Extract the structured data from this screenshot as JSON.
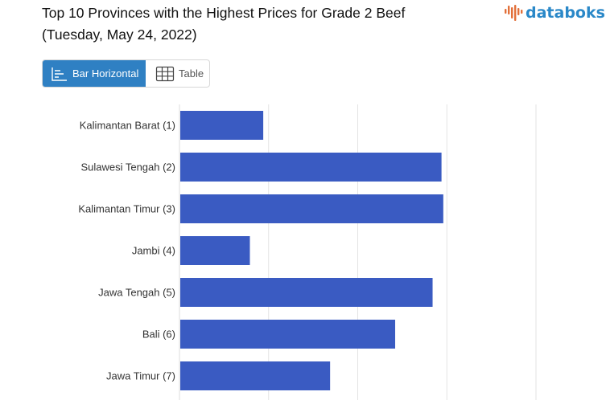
{
  "header": {
    "title_line1": "Top 10 Provinces with the Highest Prices for Grade 2 Beef",
    "title_line2": "(Tuesday, May 24, 2022)",
    "logo_text": "databoks"
  },
  "view_toggle": {
    "bar_label": "Bar Horizontal",
    "table_label": "Table",
    "active": "bar"
  },
  "colors": {
    "bar": "#3a5bc2",
    "active_tab": "#2f80c3",
    "grid": "#e3e3e3",
    "logo": "#2a88c8",
    "logo_mark": "#e2703a"
  },
  "chart_data": {
    "type": "bar",
    "orientation": "horizontal",
    "title": "",
    "xlabel": "",
    "ylabel": "",
    "categories": [
      "Kalimantan Barat (1)",
      "Sulawesi Tengah (2)",
      "Kalimantan Timur (3)",
      "Jambi (4)",
      "Jawa Tengah (5)",
      "Bali (6)",
      "Jawa Timur (7)"
    ],
    "values": [
      0.94,
      2.94,
      2.96,
      0.79,
      2.84,
      2.42,
      1.69
    ],
    "xlim": [
      0,
      4
    ],
    "grid": true
  }
}
